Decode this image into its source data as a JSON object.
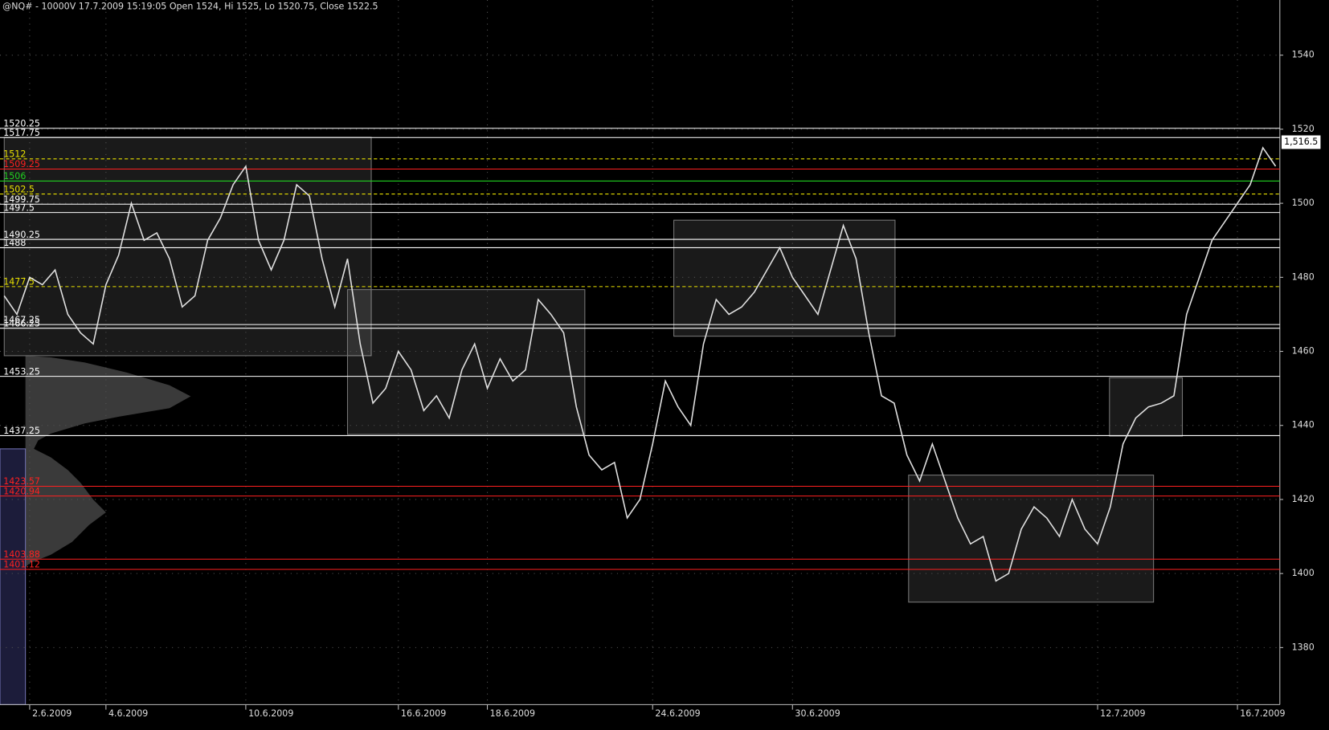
{
  "chart_data": {
    "type": "line",
    "title": "@NQ# - 10000V 17.7.2009 15:19:05 Open 1524, Hi 1525, Lo 1520.75, Close 1522.5",
    "categories": [
      null,
      null,
      "2.6.2009",
      null,
      null,
      null,
      null,
      null,
      "4.6.2009",
      null,
      null,
      null,
      null,
      null,
      null,
      null,
      null,
      null,
      null,
      "10.6.2009",
      null,
      null,
      null,
      null,
      null,
      null,
      null,
      null,
      null,
      null,
      null,
      "16.6.2009",
      null,
      null,
      null,
      null,
      null,
      null,
      "18.6.2009",
      null,
      null,
      null,
      null,
      null,
      null,
      null,
      null,
      null,
      null,
      null,
      null,
      "24.6.2009",
      null,
      null,
      null,
      null,
      null,
      null,
      null,
      null,
      null,
      null,
      "30.6.2009",
      null,
      null,
      null,
      null,
      null,
      null,
      null,
      null,
      null,
      null,
      null,
      null,
      null,
      null,
      null,
      null,
      null,
      null,
      null,
      null,
      null,
      null,
      null,
      "12.7.2009",
      null,
      null,
      null,
      null,
      null,
      null,
      null,
      null,
      null,
      null,
      "16.7.2009",
      null,
      null,
      null
    ],
    "series": [
      {
        "color": "#e0e0e0",
        "values": [
          1475,
          1470,
          1480,
          1478,
          1482,
          1470,
          1465,
          1462,
          1478,
          1486,
          1500,
          1490,
          1492,
          1485,
          1472,
          1475,
          1490,
          1496,
          1505,
          1510,
          1490,
          1482,
          1490,
          1505,
          1502,
          1485,
          1472,
          1485,
          1462,
          1446,
          1450,
          1460,
          1455,
          1444,
          1448,
          1442,
          1455,
          1462,
          1450,
          1458,
          1452,
          1455,
          1474,
          1470,
          1465,
          1445,
          1432,
          1428,
          1430,
          1415,
          1420,
          1435,
          1452,
          1445,
          1440,
          1462,
          1474,
          1470,
          1472,
          1476,
          1482,
          1488,
          1480,
          1475,
          1470,
          1482,
          1494,
          1485,
          1465,
          1448,
          1446,
          1432,
          1425,
          1435,
          1425,
          1415,
          1408,
          1410,
          1398,
          1400,
          1412,
          1418,
          1415,
          1410,
          1420,
          1412,
          1408,
          1418,
          1435,
          1442,
          1445,
          1446,
          1448,
          1470,
          1480,
          1490,
          1495,
          1500,
          1505,
          1515,
          1510
        ]
      }
    ],
    "ylim": [
      1364.6,
      1554.9
    ],
    "yticks": [
      1380,
      1400,
      1420,
      1440,
      1460,
      1480,
      1500,
      1520,
      1540
    ],
    "grid": true,
    "last_price": {
      "value": 1516.5,
      "label": "1,516.5"
    },
    "levels": [
      {
        "value": 1520.25,
        "color": "#ffffff",
        "dashed": false
      },
      {
        "value": 1517.75,
        "color": "#ffffff",
        "dashed": false
      },
      {
        "value": 1512,
        "color": "#e8e000",
        "dashed": true
      },
      {
        "value": 1509.25,
        "color": "#ff2020",
        "dashed": false
      },
      {
        "value": 1506,
        "color": "#20d020",
        "dashed": false
      },
      {
        "value": 1502.5,
        "color": "#e8e000",
        "dashed": true
      },
      {
        "value": 1499.75,
        "color": "#ffffff",
        "dashed": false
      },
      {
        "value": 1497.5,
        "color": "#ffffff",
        "dashed": false
      },
      {
        "value": 1490.25,
        "color": "#ffffff",
        "dashed": false
      },
      {
        "value": 1488,
        "color": "#ffffff",
        "dashed": false
      },
      {
        "value": 1477.5,
        "color": "#e8e000",
        "dashed": true
      },
      {
        "value": 1467.25,
        "color": "#ffffff",
        "dashed": false
      },
      {
        "value": 1466.25,
        "color": "#ffffff",
        "dashed": false
      },
      {
        "value": 1453.25,
        "color": "#ffffff",
        "dashed": false
      },
      {
        "value": 1437.25,
        "color": "#ffffff",
        "dashed": false
      },
      {
        "value": 1423.57,
        "color": "#ff2020",
        "dashed": false
      },
      {
        "value": 1420.94,
        "color": "#ff2020",
        "dashed": false
      },
      {
        "value": 1403.88,
        "color": "#ff2020",
        "dashed": false
      },
      {
        "value": 1401.12,
        "color": "#ff2020",
        "dashed": false
      }
    ]
  }
}
